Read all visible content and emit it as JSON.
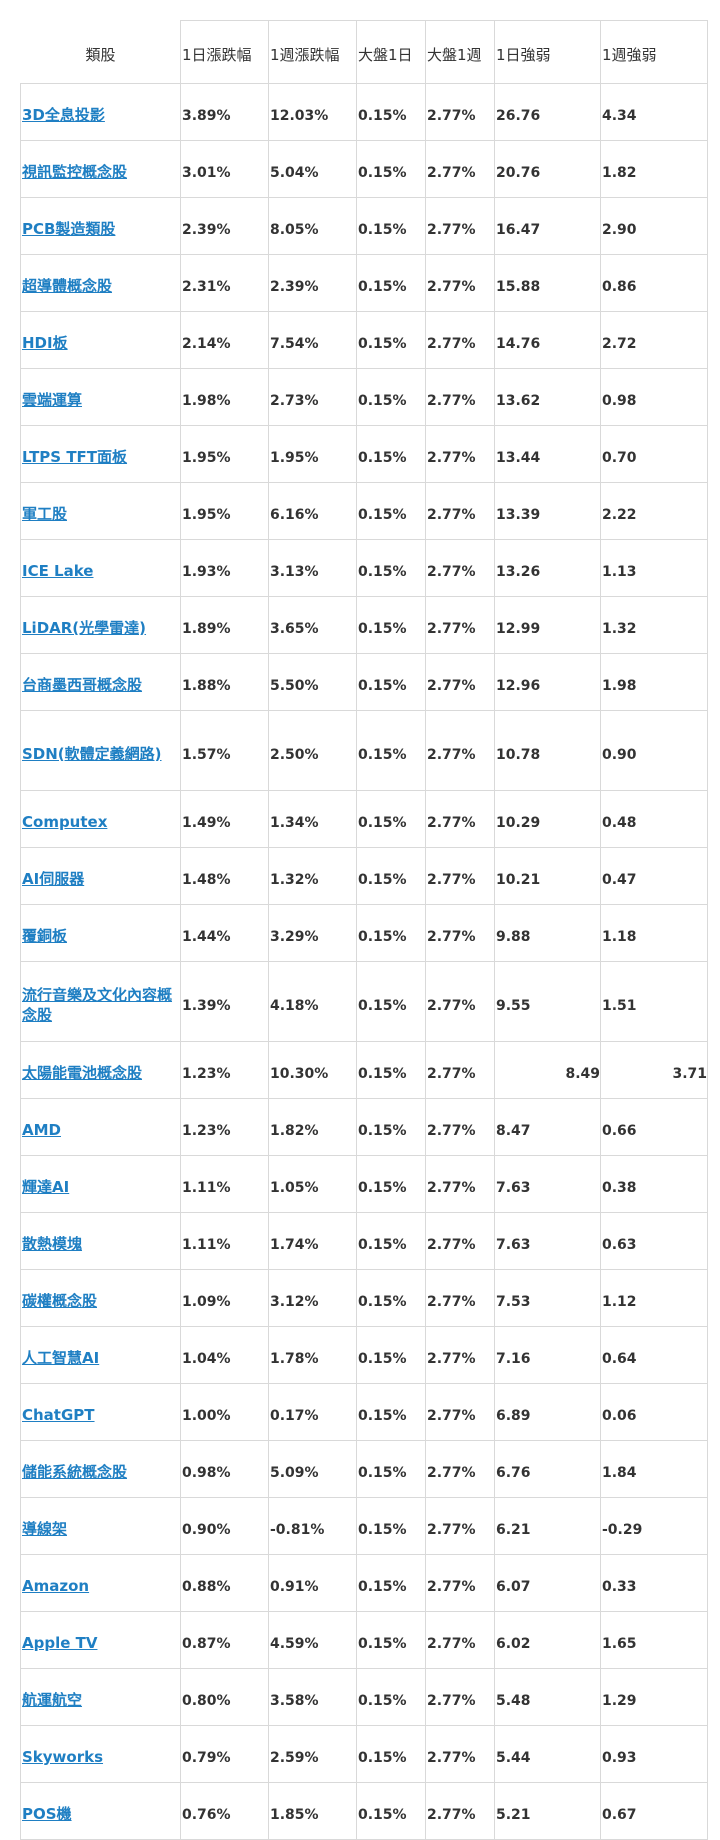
{
  "table": {
    "headers": [
      "類股",
      "1日漲跌幅",
      "1週漲跌幅",
      "大盤1日",
      "大盤1週",
      "1日強弱",
      "1週強弱"
    ],
    "rows": [
      {
        "name": "3D全息投影",
        "d1": "3.89%",
        "w1": "12.03%",
        "m1": "0.15%",
        "mw": "2.77%",
        "s1": "26.76",
        "sw": "4.34"
      },
      {
        "name": "視訊監控概念股",
        "d1": "3.01%",
        "w1": "5.04%",
        "m1": "0.15%",
        "mw": "2.77%",
        "s1": "20.76",
        "sw": "1.82"
      },
      {
        "name": "PCB製造類股",
        "d1": "2.39%",
        "w1": "8.05%",
        "m1": "0.15%",
        "mw": "2.77%",
        "s1": "16.47",
        "sw": "2.90"
      },
      {
        "name": "超導體概念股",
        "d1": "2.31%",
        "w1": "2.39%",
        "m1": "0.15%",
        "mw": "2.77%",
        "s1": "15.88",
        "sw": "0.86"
      },
      {
        "name": "HDI板",
        "d1": "2.14%",
        "w1": "7.54%",
        "m1": "0.15%",
        "mw": "2.77%",
        "s1": "14.76",
        "sw": "2.72"
      },
      {
        "name": "雲端運算",
        "d1": "1.98%",
        "w1": "2.73%",
        "m1": "0.15%",
        "mw": "2.77%",
        "s1": "13.62",
        "sw": "0.98"
      },
      {
        "name": "LTPS TFT面板",
        "d1": "1.95%",
        "w1": "1.95%",
        "m1": "0.15%",
        "mw": "2.77%",
        "s1": "13.44",
        "sw": "0.70"
      },
      {
        "name": "軍工股",
        "d1": "1.95%",
        "w1": "6.16%",
        "m1": "0.15%",
        "mw": "2.77%",
        "s1": "13.39",
        "sw": "2.22"
      },
      {
        "name": "ICE Lake",
        "d1": "1.93%",
        "w1": "3.13%",
        "m1": "0.15%",
        "mw": "2.77%",
        "s1": "13.26",
        "sw": "1.13"
      },
      {
        "name": "LiDAR(光學雷達)",
        "d1": "1.89%",
        "w1": "3.65%",
        "m1": "0.15%",
        "mw": "2.77%",
        "s1": "12.99",
        "sw": "1.32"
      },
      {
        "name": "台商墨西哥概念股",
        "d1": "1.88%",
        "w1": "5.50%",
        "m1": "0.15%",
        "mw": "2.77%",
        "s1": "12.96",
        "sw": "1.98"
      },
      {
        "name": "SDN(軟體定義網路)",
        "d1": "1.57%",
        "w1": "2.50%",
        "m1": "0.15%",
        "mw": "2.77%",
        "s1": "10.78",
        "sw": "0.90"
      },
      {
        "name": "Computex",
        "d1": "1.49%",
        "w1": "1.34%",
        "m1": "0.15%",
        "mw": "2.77%",
        "s1": "10.29",
        "sw": "0.48"
      },
      {
        "name": "AI伺服器",
        "d1": "1.48%",
        "w1": "1.32%",
        "m1": "0.15%",
        "mw": "2.77%",
        "s1": "10.21",
        "sw": "0.47"
      },
      {
        "name": "覆銅板",
        "d1": "1.44%",
        "w1": "3.29%",
        "m1": "0.15%",
        "mw": "2.77%",
        "s1": "9.88",
        "sw": "1.18"
      },
      {
        "name": "流行音樂及文化內容概念股",
        "d1": "1.39%",
        "w1": "4.18%",
        "m1": "0.15%",
        "mw": "2.77%",
        "s1": "9.55",
        "sw": "1.51"
      },
      {
        "name": "太陽能電池概念股",
        "d1": "1.23%",
        "w1": "10.30%",
        "m1": "0.15%",
        "mw": "2.77%",
        "s1": "8.49",
        "sw": "3.71"
      },
      {
        "name": "AMD",
        "d1": "1.23%",
        "w1": "1.82%",
        "m1": "0.15%",
        "mw": "2.77%",
        "s1": "8.47",
        "sw": "0.66"
      },
      {
        "name": "輝達AI",
        "d1": "1.11%",
        "w1": "1.05%",
        "m1": "0.15%",
        "mw": "2.77%",
        "s1": "7.63",
        "sw": "0.38"
      },
      {
        "name": "散熱模塊",
        "d1": "1.11%",
        "w1": "1.74%",
        "m1": "0.15%",
        "mw": "2.77%",
        "s1": "7.63",
        "sw": "0.63"
      },
      {
        "name": "碳權概念股",
        "d1": "1.09%",
        "w1": "3.12%",
        "m1": "0.15%",
        "mw": "2.77%",
        "s1": "7.53",
        "sw": "1.12"
      },
      {
        "name": "人工智慧AI",
        "d1": "1.04%",
        "w1": "1.78%",
        "m1": "0.15%",
        "mw": "2.77%",
        "s1": "7.16",
        "sw": "0.64"
      },
      {
        "name": "ChatGPT",
        "d1": "1.00%",
        "w1": "0.17%",
        "m1": "0.15%",
        "mw": "2.77%",
        "s1": "6.89",
        "sw": "0.06"
      },
      {
        "name": "儲能系統概念股",
        "d1": "0.98%",
        "w1": "5.09%",
        "m1": "0.15%",
        "mw": "2.77%",
        "s1": "6.76",
        "sw": "1.84"
      },
      {
        "name": "導線架",
        "d1": "0.90%",
        "w1": "-0.81%",
        "m1": "0.15%",
        "mw": "2.77%",
        "s1": "6.21",
        "sw": "-0.29"
      },
      {
        "name": "Amazon",
        "d1": "0.88%",
        "w1": "0.91%",
        "m1": "0.15%",
        "mw": "2.77%",
        "s1": "6.07",
        "sw": "0.33"
      },
      {
        "name": "Apple TV",
        "d1": "0.87%",
        "w1": "4.59%",
        "m1": "0.15%",
        "mw": "2.77%",
        "s1": "6.02",
        "sw": "1.65"
      },
      {
        "name": "航運航空",
        "d1": "0.80%",
        "w1": "3.58%",
        "m1": "0.15%",
        "mw": "2.77%",
        "s1": "5.48",
        "sw": "1.29"
      },
      {
        "name": "Skyworks",
        "d1": "0.79%",
        "w1": "2.59%",
        "m1": "0.15%",
        "mw": "2.77%",
        "s1": "5.44",
        "sw": "0.93"
      },
      {
        "name": "POS機",
        "d1": "0.76%",
        "w1": "1.85%",
        "m1": "0.15%",
        "mw": "2.77%",
        "s1": "5.21",
        "sw": "0.67"
      }
    ]
  }
}
